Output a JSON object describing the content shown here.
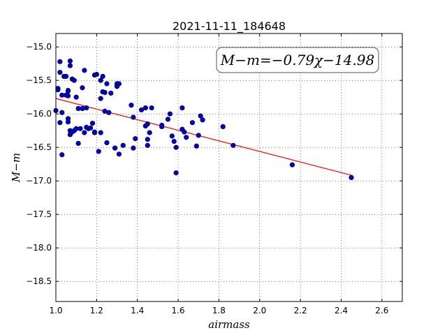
{
  "chart_data": {
    "type": "scatter",
    "title": "2021-11-11_184648",
    "xlabel": "airmass",
    "ylabel": "M−m",
    "xlim": [
      1.0,
      2.7
    ],
    "ylim": [
      -18.8,
      -14.8
    ],
    "y_inverted": true,
    "grid": true,
    "xticks": [
      1.0,
      1.2,
      1.4,
      1.6,
      1.8,
      2.0,
      2.2,
      2.4,
      2.6
    ],
    "yticks": [
      -15.0,
      -15.5,
      -16.0,
      -16.5,
      -17.0,
      -17.5,
      -18.0,
      -18.5
    ],
    "xtick_labels": [
      "1.0",
      "1.2",
      "1.4",
      "1.6",
      "1.8",
      "2.0",
      "2.2",
      "2.4",
      "2.6"
    ],
    "ytick_labels": [
      "−15.0",
      "−15.5",
      "−16.0",
      "−16.5",
      "−17.0",
      "−17.5",
      "−18.0",
      "−18.5"
    ],
    "annotation": "M−m=−0.79χ−14.98",
    "annotation_position": "top-right",
    "fit": {
      "slope": -0.79,
      "intercept": -14.98,
      "x_range": [
        1.0,
        2.45
      ],
      "color": "#ff0000"
    },
    "point_color": "#0000cc",
    "series": [
      {
        "x": [
          1.0,
          1.01,
          1.01,
          1.02,
          1.02,
          1.02,
          1.03,
          1.03,
          1.03,
          1.04,
          1.05,
          1.05,
          1.06,
          1.06,
          1.06,
          1.06,
          1.06,
          1.07,
          1.07,
          1.07,
          1.07,
          1.08,
          1.08,
          1.09,
          1.09,
          1.1,
          1.1,
          1.11,
          1.11,
          1.12,
          1.13,
          1.13,
          1.14,
          1.14,
          1.15,
          1.15,
          1.16,
          1.17,
          1.18,
          1.19,
          1.19,
          1.19,
          1.2,
          1.21,
          1.22,
          1.22,
          1.22,
          1.23,
          1.23,
          1.24,
          1.24,
          1.25,
          1.25,
          1.26,
          1.27,
          1.29,
          1.3,
          1.3,
          1.31,
          1.31,
          1.33,
          1.37,
          1.38,
          1.38,
          1.39,
          1.42,
          1.44,
          1.44,
          1.45,
          1.45,
          1.45,
          1.46,
          1.47,
          1.52,
          1.52,
          1.55,
          1.56,
          1.57,
          1.58,
          1.59,
          1.59,
          1.62,
          1.62,
          1.63,
          1.64,
          1.67,
          1.69,
          1.7,
          1.71,
          1.72,
          1.82,
          1.87,
          2.16,
          2.45
        ],
        "y": [
          -15.95,
          -15.62,
          -15.64,
          -15.22,
          -16.13,
          -15.38,
          -15.72,
          -15.98,
          -16.61,
          -15.44,
          -15.72,
          -15.44,
          -16.12,
          -16.07,
          -15.65,
          -15.66,
          -15.73,
          -16.31,
          -15.21,
          -15.28,
          -16.25,
          -15.48,
          -16.27,
          -16.25,
          -15.5,
          -16.22,
          -15.75,
          -15.92,
          -16.44,
          -16.22,
          -15.61,
          -15.92,
          -15.35,
          -16.28,
          -16.2,
          -15.91,
          -16.22,
          -16.21,
          -16.14,
          -15.42,
          -16.28,
          -16.27,
          -15.41,
          -16.56,
          -16.28,
          -15.5,
          -15.77,
          -15.67,
          -15.44,
          -15.96,
          -15.68,
          -15.55,
          -16.43,
          -15.98,
          -15.69,
          -16.51,
          -15.55,
          -15.59,
          -15.55,
          -16.6,
          -16.47,
          -15.87,
          -16.51,
          -16.05,
          -16.37,
          -15.94,
          -16.18,
          -15.91,
          -16.38,
          -16.47,
          -16.15,
          -16.28,
          -15.91,
          -16.19,
          -16.17,
          -16.08,
          -16.0,
          -16.33,
          -16.41,
          -16.88,
          -16.5,
          -16.23,
          -15.91,
          -16.27,
          -16.35,
          -16.13,
          -16.48,
          -16.32,
          -16.03,
          -16.09,
          -16.19,
          -16.47,
          -16.76,
          -16.95
        ]
      }
    ]
  }
}
